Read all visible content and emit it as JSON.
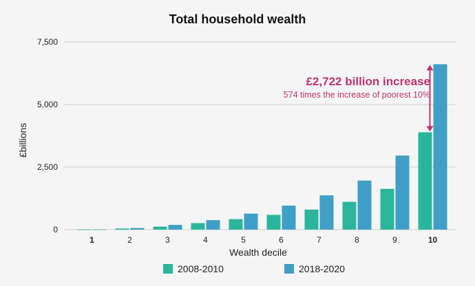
{
  "chart_data": {
    "type": "bar",
    "title": "Total household wealth",
    "xlabel": "Wealth decile",
    "ylabel": "£billions",
    "categories": [
      "1",
      "2",
      "3",
      "4",
      "5",
      "6",
      "7",
      "8",
      "9",
      "10"
    ],
    "highlight_categories": [
      "1",
      "10"
    ],
    "series": [
      {
        "name": "2008-2010",
        "color": "#2bb69c",
        "values": [
          5,
          45,
          120,
          260,
          420,
          590,
          800,
          1110,
          1630,
          3890
        ]
      },
      {
        "name": "2018-2020",
        "color": "#3f9fc6",
        "values": [
          10,
          65,
          190,
          380,
          640,
          960,
          1370,
          1960,
          2960,
          6610
        ]
      }
    ],
    "ylim": [
      0,
      7500
    ],
    "yticks": [
      "0",
      "2,500",
      "5,000",
      "7,500"
    ],
    "ytick_values": [
      0,
      2500,
      5000,
      7500
    ],
    "grid": true,
    "legend_position": "bottom",
    "annotation": {
      "headline": "£2,722 billion increase",
      "subtext": "574 times the increase of poorest 10%",
      "color": "#c0336b",
      "category": "10"
    },
    "highlight_color": "#c0336b"
  }
}
